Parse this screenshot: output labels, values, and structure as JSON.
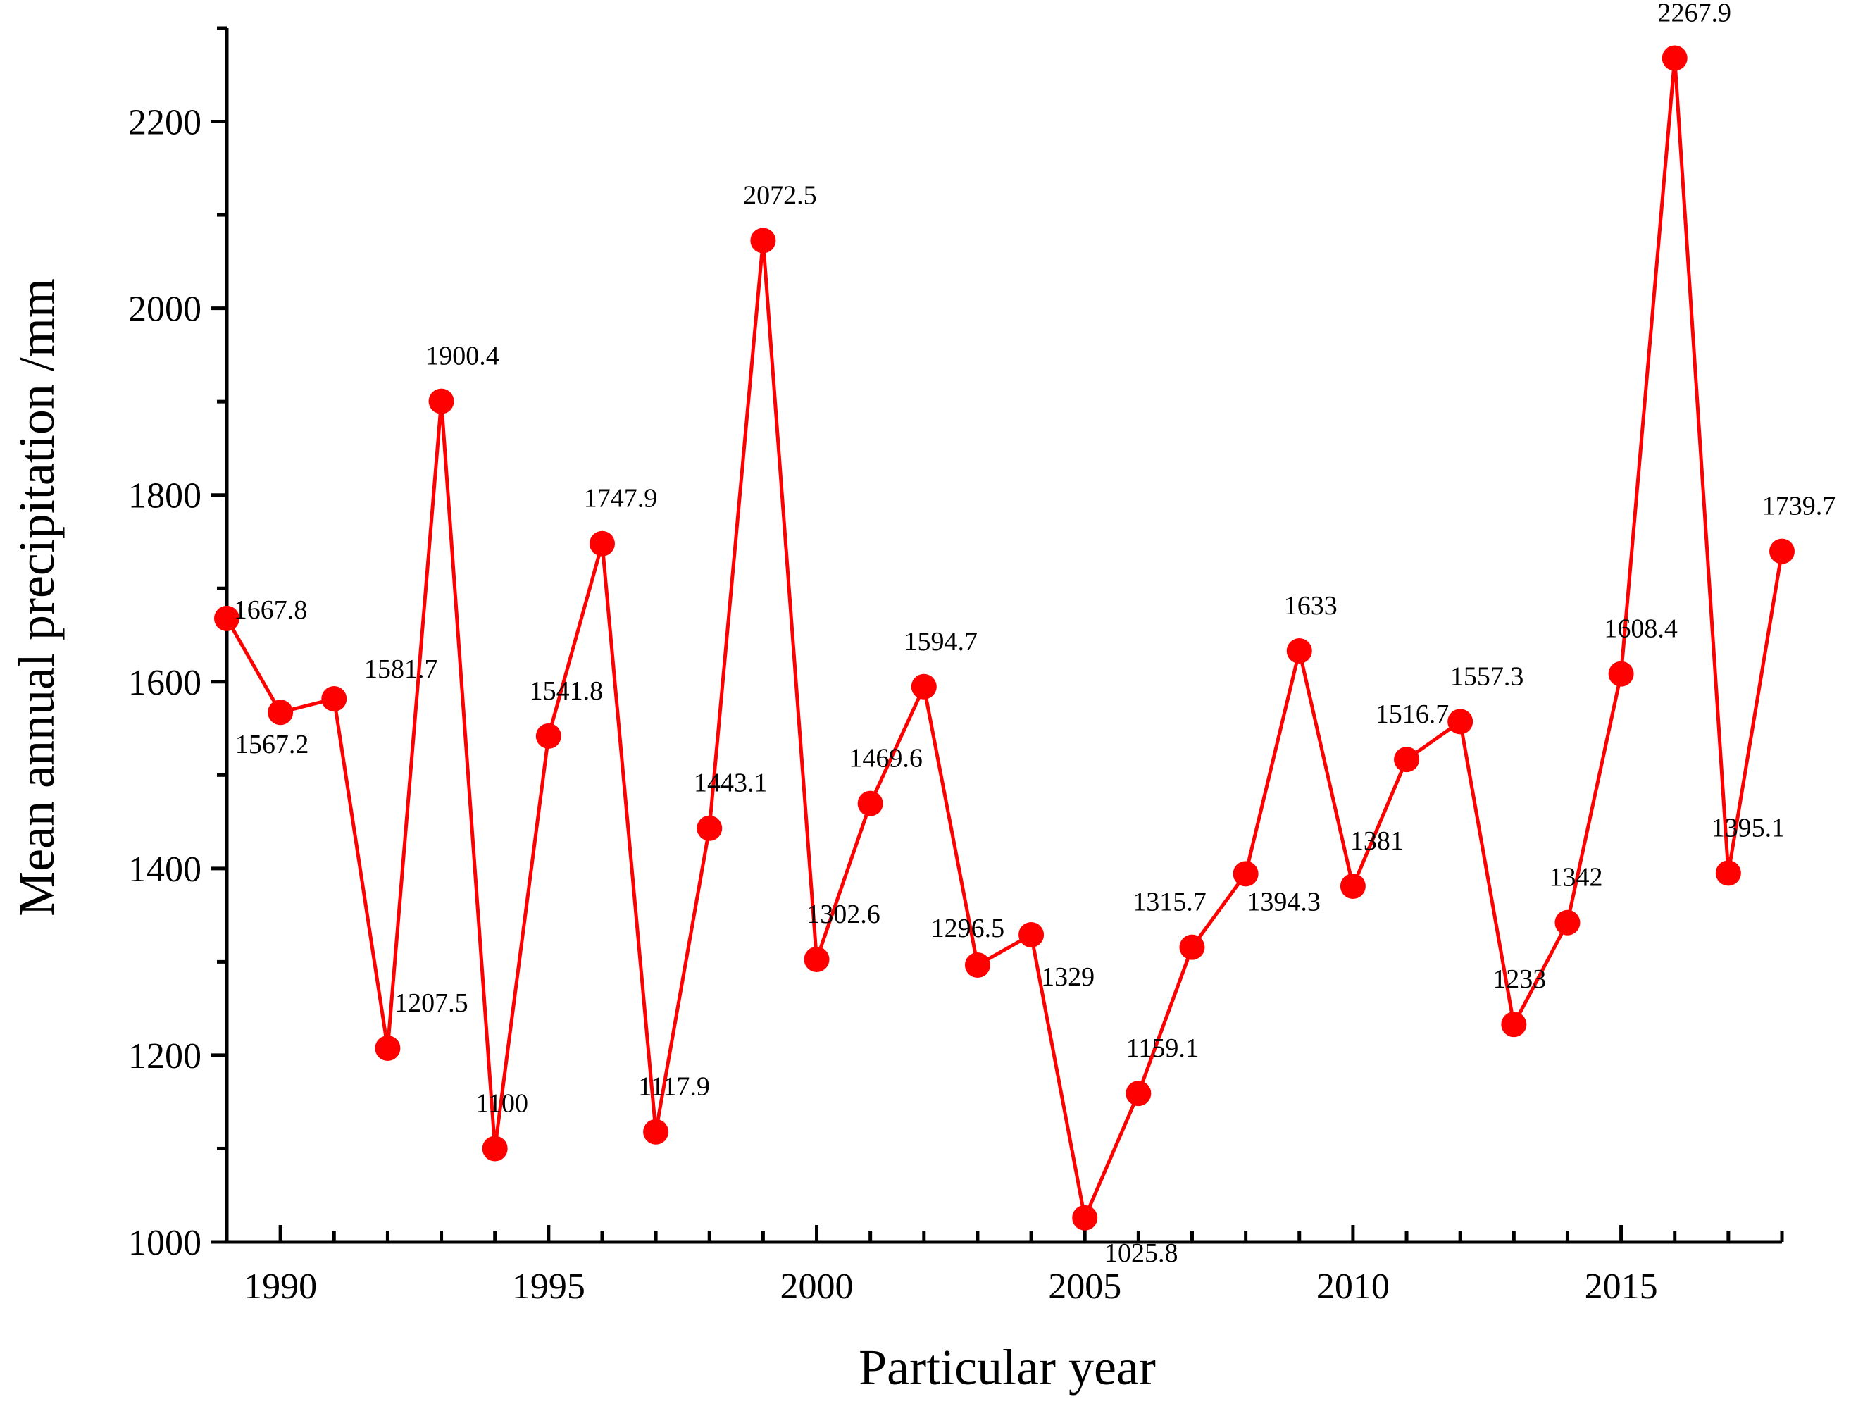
{
  "chart_data": {
    "type": "line",
    "title": "",
    "xlabel": "Particular year",
    "ylabel": "Mean annual precipitation /mm",
    "xlim": [
      1989,
      2018
    ],
    "ylim": [
      1000,
      2300
    ],
    "x_ticks": [
      1990,
      1995,
      2000,
      2005,
      2010,
      2015
    ],
    "y_ticks": [
      1000,
      1200,
      1400,
      1600,
      1800,
      2000,
      2200
    ],
    "grid": false,
    "legend": "none",
    "colors": {
      "series": "#ff0000",
      "axis": "#000000"
    },
    "series": [
      {
        "name": "Mean annual precipitation",
        "x": [
          1989,
          1990,
          1991,
          1992,
          1993,
          1994,
          1995,
          1996,
          1997,
          1998,
          1999,
          2000,
          2001,
          2002,
          2003,
          2004,
          2005,
          2006,
          2007,
          2008,
          2009,
          2010,
          2011,
          2012,
          2013,
          2014,
          2015,
          2016,
          2017,
          2018
        ],
        "values": [
          1667.8,
          1567.2,
          1581.7,
          1207.5,
          1900.4,
          1100,
          1541.8,
          1747.9,
          1117.9,
          1443.1,
          2072.5,
          1302.6,
          1469.6,
          1594.7,
          1296.5,
          1329,
          1025.8,
          1159.1,
          1315.7,
          1394.3,
          1633,
          1381,
          1516.7,
          1557.3,
          1233,
          1342,
          1608.4,
          2267.9,
          1395.1,
          1739.7
        ],
        "labels": [
          "1667.8",
          "1567.2",
          "1581.7",
          "1207.5",
          "1900.4",
          "1100",
          "1541.8",
          "1747.9",
          "1117.9",
          "1443.1",
          "2072.5",
          "1302.6",
          "1469.6",
          "1594.7",
          "1296.5",
          "1329",
          "1025.8",
          "1159.1",
          "1315.7",
          "1394.3",
          "1633",
          "1381",
          "1516.7",
          "1557.3",
          "1233",
          "1342",
          "1608.4",
          "2267.9",
          "1395.1",
          "1739.7"
        ]
      }
    ]
  }
}
